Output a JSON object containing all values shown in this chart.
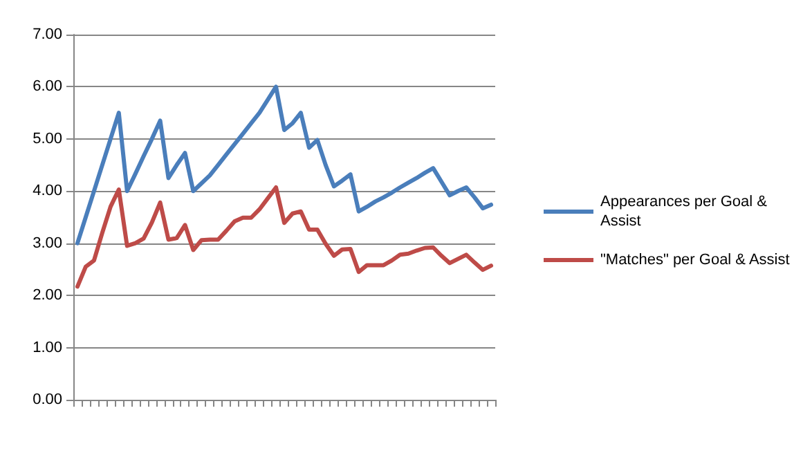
{
  "chart_data": {
    "type": "line",
    "categories": [
      null,
      null,
      null,
      null,
      null,
      null,
      null,
      null,
      null,
      null,
      null,
      null,
      null,
      null,
      null,
      null,
      null,
      null,
      null,
      null,
      null,
      null,
      null,
      null,
      null,
      null,
      null,
      null,
      null,
      null,
      null,
      null,
      null,
      null,
      null,
      null,
      null,
      null,
      null,
      null,
      null,
      null,
      null,
      null,
      null,
      null,
      null,
      null,
      null,
      null,
      null
    ],
    "series": [
      {
        "name": "Appearances per Goal & Assist",
        "color": "#4a7ebb",
        "values": [
          3.0,
          3.5,
          4.0,
          4.5,
          5.0,
          5.5,
          4.0,
          4.33,
          4.67,
          5.0,
          5.35,
          4.25,
          4.5,
          4.73,
          4.0,
          4.15,
          4.3,
          4.5,
          4.7,
          4.9,
          5.1,
          5.3,
          5.5,
          5.75,
          6.0,
          5.17,
          5.3,
          5.5,
          4.83,
          4.98,
          4.5,
          4.09,
          4.2,
          4.32,
          3.61,
          3.7,
          3.8,
          3.88,
          3.97,
          4.07,
          4.16,
          4.25,
          4.35,
          4.44,
          4.18,
          3.92,
          4.0,
          4.07,
          3.88,
          3.67,
          3.74
        ]
      },
      {
        "name": "\"Matches\" per Goal & Assist",
        "color": "#be4b48",
        "values": [
          2.17,
          2.55,
          2.67,
          3.2,
          3.7,
          4.03,
          2.95,
          3.0,
          3.09,
          3.4,
          3.78,
          3.07,
          3.1,
          3.35,
          2.87,
          3.06,
          3.07,
          3.07,
          3.24,
          3.42,
          3.49,
          3.49,
          3.65,
          3.86,
          4.07,
          3.39,
          3.57,
          3.61,
          3.26,
          3.26,
          2.99,
          2.76,
          2.88,
          2.89,
          2.45,
          2.58,
          2.58,
          2.58,
          2.67,
          2.78,
          2.8,
          2.86,
          2.91,
          2.92,
          2.76,
          2.62,
          2.7,
          2.78,
          2.63,
          2.49,
          2.57
        ]
      }
    ],
    "ylim": [
      0,
      7
    ],
    "yticks": [
      {
        "value": 0,
        "label": "0.00"
      },
      {
        "value": 1,
        "label": "1.00"
      },
      {
        "value": 2,
        "label": "2.00"
      },
      {
        "value": 3,
        "label": "3.00"
      },
      {
        "value": 4,
        "label": "4.00"
      },
      {
        "value": 5,
        "label": "5.00"
      },
      {
        "value": 6,
        "label": "6.00"
      },
      {
        "value": 7,
        "label": "7.00"
      }
    ],
    "grid": "y",
    "legend": "right",
    "marker": "none",
    "line_style": "solid"
  }
}
